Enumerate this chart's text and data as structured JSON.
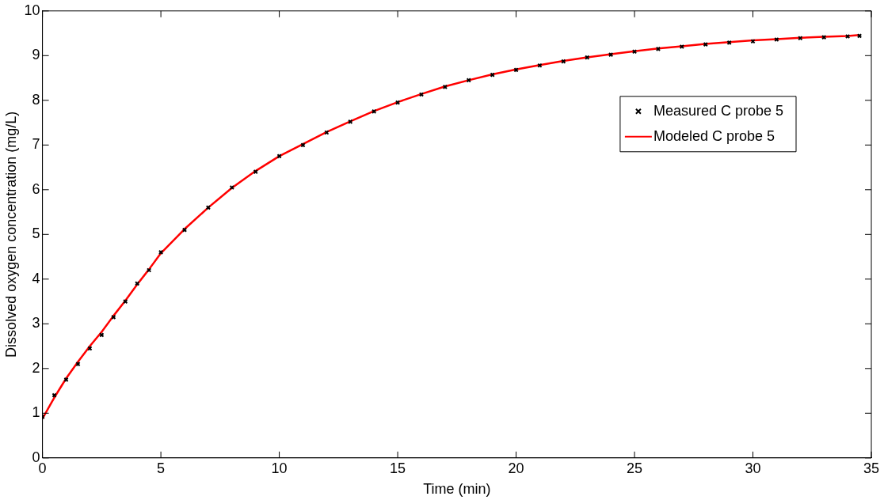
{
  "chart_data": {
    "type": "line",
    "xlabel": "Time (min)",
    "ylabel": "Dissolved oxygen concentration (mg/L)",
    "x": [
      0,
      0.5,
      1,
      1.5,
      2,
      2.5,
      3,
      3.5,
      4,
      4.5,
      5,
      6,
      7,
      8,
      9,
      10,
      11,
      12,
      13,
      14,
      15,
      16,
      17,
      18,
      19,
      20,
      21,
      22,
      23,
      24,
      25,
      26,
      27,
      28,
      29,
      30,
      31,
      32,
      33,
      34,
      34.5
    ],
    "series": [
      {
        "name": "Measured C probe 5",
        "type": "scatter",
        "marker": "cross",
        "color": "#000000",
        "values": [
          0.92,
          1.4,
          1.75,
          2.1,
          2.45,
          2.75,
          3.15,
          3.5,
          3.9,
          4.2,
          4.6,
          5.1,
          5.6,
          6.05,
          6.4,
          6.75,
          7.0,
          7.28,
          7.52,
          7.75,
          7.95,
          8.13,
          8.3,
          8.45,
          8.57,
          8.68,
          8.78,
          8.87,
          8.96,
          9.02,
          9.09,
          9.15,
          9.2,
          9.25,
          9.29,
          9.32,
          9.36,
          9.39,
          9.41,
          9.43,
          9.44
        ]
      },
      {
        "name": "Modeled C probe 5",
        "marker": "none",
        "color": "#ff0000",
        "values": [
          0.88,
          1.35,
          1.78,
          2.15,
          2.5,
          2.82,
          3.18,
          3.52,
          3.88,
          4.22,
          4.58,
          5.12,
          5.6,
          6.04,
          6.42,
          6.75,
          7.02,
          7.29,
          7.53,
          7.76,
          7.96,
          8.14,
          8.31,
          8.45,
          8.58,
          8.69,
          8.79,
          8.88,
          8.96,
          9.03,
          9.1,
          9.16,
          9.21,
          9.26,
          9.3,
          9.34,
          9.37,
          9.4,
          9.42,
          9.44,
          9.46
        ]
      }
    ],
    "xlim": [
      0,
      35
    ],
    "xticks": [
      0,
      5,
      10,
      15,
      20,
      25,
      30,
      35
    ],
    "ylim": [
      0,
      10
    ],
    "yticks": [
      0,
      1,
      2,
      3,
      4,
      5,
      6,
      7,
      8,
      9,
      10
    ],
    "grid": false,
    "legend": "top right"
  }
}
